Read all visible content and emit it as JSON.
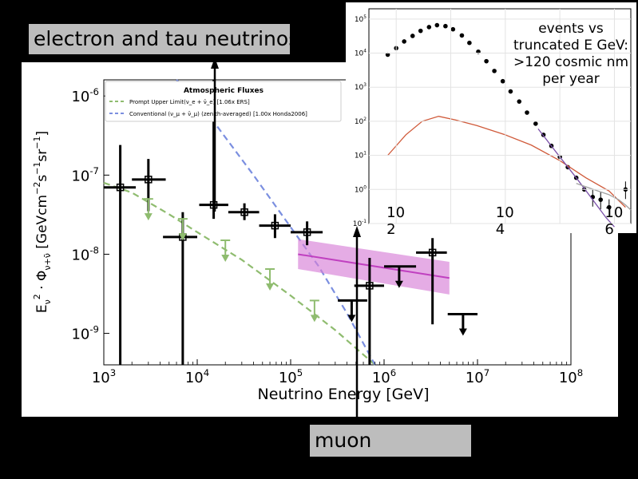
{
  "labels": {
    "electron_tau": "electron and tau neutrinos",
    "muon": "muon"
  },
  "inset_note": "events vs truncated E GeV: >120 cosmic nm per year",
  "chart_data": [
    {
      "type": "scatter",
      "title": "",
      "xlabel": "Neutrino Energy [GeV]",
      "ylabel": "E_ν^2 · Φ_{ν+ν̄} [GeVcm^-2 s^-1 sr^-1]",
      "x_scale": "log",
      "y_scale": "log",
      "xlim": [
        1000,
        100000000
      ],
      "ylim": [
        4e-10,
        1.6e-06
      ],
      "x_ticks": [
        {
          "v": 1000,
          "t": "10^3"
        },
        {
          "v": 10000,
          "t": "10^4"
        },
        {
          "v": 100000,
          "t": "10^5"
        },
        {
          "v": 1000000,
          "t": "10^6"
        },
        {
          "v": 10000000,
          "t": "10^7"
        },
        {
          "v": 100000000,
          "t": "10^8"
        }
      ],
      "y_ticks": [
        {
          "v": 1e-09,
          "t": "10^-9"
        },
        {
          "v": 1e-08,
          "t": "10^-8"
        },
        {
          "v": 1e-07,
          "t": "10^-7"
        },
        {
          "v": 1e-06,
          "t": "10^-6"
        }
      ],
      "legend": {
        "title": "Atmospheric Fluxes",
        "placement": "top-left",
        "entries": [
          {
            "label": "Prompt Upper Limit(ν_e + ν̄_e) [1.06x ERS]",
            "color": "#8fbc6f",
            "style": "dashed"
          },
          {
            "label": "Conventional (ν_μ + ν̄_μ) (zenith-averaged) [1.00x Honda2006]",
            "color": "#7b8fe0",
            "style": "dashed"
          }
        ]
      },
      "series": [
        {
          "name": "Prompt Upper Limit(ν_e + ν̄_e) [1.06x ERS]",
          "kind": "line",
          "color": "#8fbc6f",
          "x": [
            1000,
            2000,
            5000,
            10000,
            30000,
            100000,
            300000,
            800000
          ],
          "y": [
            8e-08,
            6e-08,
            3.2e-08,
            1.9e-08,
            8.5e-09,
            3e-09,
            1.1e-09,
            4e-10
          ]
        },
        {
          "name": "Conventional (ν_μ + ν̄_μ) (zenith-averaged) [1.00x Honda2006]",
          "kind": "line",
          "color": "#7b8fe0",
          "x": [
            6000,
            10000,
            20000,
            40000,
            100000,
            200000,
            400000,
            800000
          ],
          "y": [
            1.6e-06,
            9e-07,
            3e-07,
            1e-07,
            2.2e-08,
            7e-09,
            1.8e-09,
            4e-10
          ]
        },
        {
          "kind": "band",
          "color": "#d77fd7",
          "x": [
            120000,
            5000000
          ],
          "y": [
            1e-08,
            5e-09
          ],
          "y_low": [
            6.5e-09,
            3.1e-09
          ],
          "y_high": [
            1.55e-08,
            8e-09
          ]
        },
        {
          "kind": "points",
          "color": "#000000",
          "x": [
            1500,
            3000,
            7000,
            15000,
            32000,
            68000,
            150000,
            700000,
            3300000
          ],
          "y": [
            7e-08,
            8.8e-08,
            1.65e-08,
            4.2e-08,
            3.4e-08,
            2.3e-08,
            1.9e-08,
            4e-09,
            1.05e-08
          ],
          "x_low": [
            1000,
            2000,
            4300,
            10500,
            21500,
            46000,
            100000,
            480000,
            2200000
          ],
          "x_high": [
            2200,
            4600,
            10000,
            21500,
            46000,
            100000,
            220000,
            1000000,
            4700000
          ],
          "y_low": [
            4e-10,
            3.5e-08,
            4e-10,
            2.8e-08,
            2.7e-08,
            1.6e-08,
            1.3e-08,
            4e-10,
            1.3e-09
          ],
          "y_high": [
            2.4e-07,
            1.6e-07,
            3.4e-08,
            1.6e-06,
            4.4e-08,
            3.2e-08,
            2.6e-08,
            9e-09,
            1.6e-08
          ]
        },
        {
          "kind": "upper_limits",
          "color": "#000000",
          "x": [
            450000,
            1450000,
            7000000
          ],
          "y": [
            2.6e-09,
            7e-09,
            1.75e-09
          ],
          "x_low": [
            320000,
            1000000,
            4800000
          ],
          "x_high": [
            660000,
            2200000,
            10000000
          ]
        },
        {
          "kind": "upper_limits",
          "color": "#8fbc6f",
          "x": [
            3000,
            7000,
            20000,
            60000,
            180000
          ],
          "y": [
            5e-08,
            2.8e-08,
            1.5e-08,
            6.5e-09,
            2.6e-09
          ],
          "x_low": [
            3000,
            7000,
            20000,
            60000,
            180000
          ],
          "x_high": [
            3000,
            7000,
            20000,
            60000,
            180000
          ]
        }
      ]
    },
    {
      "type": "line",
      "title": "",
      "xlabel": "",
      "ylabel": "",
      "x_scale": "log",
      "y_scale": "log",
      "xlim": [
        31.6,
        2000000.0
      ],
      "ylim": [
        0.1,
        200000
      ],
      "grid": true,
      "x_ticks": [
        {
          "v": 100,
          "t": "10 2"
        },
        {
          "v": 10000,
          "t": "10 4"
        },
        {
          "v": 1000000,
          "t": "10 6"
        }
      ],
      "y_ticks": [
        {
          "v": 0.1,
          "t": "10^-1"
        },
        {
          "v": 1,
          "t": "10^0"
        },
        {
          "v": 10,
          "t": "10^1"
        },
        {
          "v": 100,
          "t": "10^2"
        },
        {
          "v": 1000,
          "t": "10^3"
        },
        {
          "v": 10000,
          "t": "10^4"
        },
        {
          "v": 100000,
          "t": "10^5"
        }
      ],
      "series": [
        {
          "kind": "points",
          "color": "#000000",
          "x": [
            70,
            100,
            140,
            200,
            280,
            400,
            560,
            800,
            1100,
            1600,
            2200,
            3200,
            4500,
            6300,
            9000,
            12500,
            18000,
            25000,
            36000,
            50000,
            70000,
            100000,
            140000,
            200000,
            280000,
            400000,
            560000,
            800000
          ],
          "y": [
            9000,
            14000,
            22000,
            32000,
            45000,
            58000,
            66000,
            62000,
            50000,
            33000,
            20000,
            11000,
            5800,
            3000,
            1500,
            750,
            380,
            180,
            85,
            40,
            19,
            9,
            4.5,
            2.2,
            1,
            0.6,
            0.5,
            0.3
          ]
        },
        {
          "kind": "line",
          "color": "#d05a3a",
          "x": [
            70,
            150,
            300,
            600,
            1200,
            3000,
            10000,
            30000,
            100000,
            300000,
            800000,
            1600000
          ],
          "y": [
            10,
            40,
            100,
            140,
            110,
            75,
            40,
            20,
            7,
            2.2,
            0.9,
            0.3
          ]
        },
        {
          "kind": "line",
          "color": "#7a4fa8",
          "x": [
            40000,
            100000,
            200000,
            400000,
            700000,
            1000000
          ],
          "y": [
            60,
            9,
            2.2,
            0.5,
            0.15,
            0.08
          ]
        },
        {
          "kind": "line",
          "color": "#a0a0a0",
          "x": [
            200000,
            500000,
            800000,
            1200000,
            1600000,
            2000000
          ],
          "y": [
            1.5,
            0.9,
            0.7,
            0.5,
            0.35,
            0.25
          ]
        },
        {
          "kind": "points",
          "color": "#000000",
          "x": [
            1600000
          ],
          "y": [
            1
          ]
        }
      ]
    }
  ]
}
